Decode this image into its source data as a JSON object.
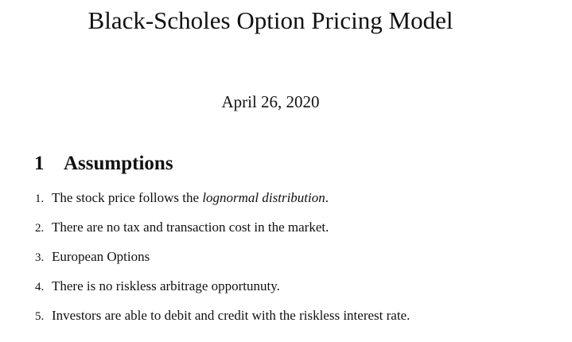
{
  "document": {
    "title": "Black-Scholes Option Pricing Model",
    "date": "April 26, 2020"
  },
  "section": {
    "number": "1",
    "heading": "Assumptions"
  },
  "assumptions": [
    {
      "marker": "1.",
      "text": "The stock price follows the ",
      "emphasis": "lognormal distribution",
      "tail": "."
    },
    {
      "marker": "2.",
      "text": "There are no tax and transaction cost in the market."
    },
    {
      "marker": "3.",
      "text": "European Options"
    },
    {
      "marker": "4.",
      "text": "There is no riskless arbitrage opportunuty."
    },
    {
      "marker": "5.",
      "text": "Investors are able to debit and credit with the riskless interest rate."
    }
  ]
}
